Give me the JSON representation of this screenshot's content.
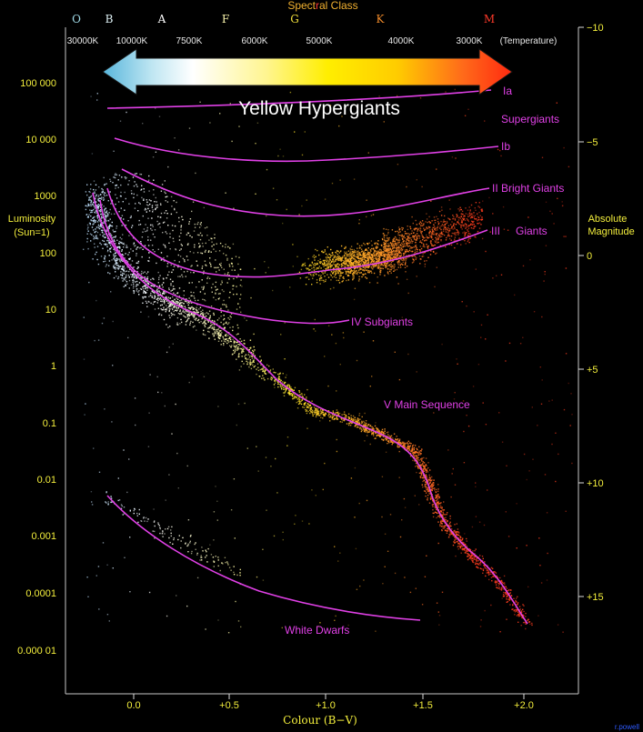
{
  "title_parts": [
    {
      "text": "Spect",
      "color": "#f0b030"
    },
    {
      "text": "r",
      "color": "#ff3a3a"
    },
    {
      "text": "al Class",
      "color": "#f0b030"
    }
  ],
  "spectral_classes": [
    {
      "letter": "O",
      "color": "#9fd9e6"
    },
    {
      "letter": "B",
      "color": "#dff2f6"
    },
    {
      "letter": "A",
      "color": "#ffffff"
    },
    {
      "letter": "F",
      "color": "#fffab0"
    },
    {
      "letter": "G",
      "color": "#f3e13c"
    },
    {
      "letter": "K",
      "color": "#f08a2a"
    },
    {
      "letter": "M",
      "color": "#ff3a2a"
    }
  ],
  "temperatures": [
    "30000K",
    "10000K",
    "7500K",
    "6000K",
    "5000K",
    "4000K",
    "3000K"
  ],
  "temperature_label": "(Temperature)",
  "banner_text": "Yellow Hypergiants",
  "left_axis": {
    "label_line1": "Luminosity",
    "label_line2": "(Sun=1)",
    "ticks": [
      "100 000",
      "10 000",
      "1000",
      "100",
      "10",
      "1",
      "0.1",
      "0.01",
      "0.001",
      "0.0001",
      "0.000 01"
    ]
  },
  "right_axis": {
    "label_line1": "Absolute",
    "label_line2": "Magnitude",
    "ticks": [
      "−10",
      "−5",
      "0",
      "+5",
      "+10",
      "+15"
    ]
  },
  "bottom_axis": {
    "label": "Colour (B−V)",
    "ticks": [
      "0.0",
      "+0.5",
      "+1.0",
      "+1.5",
      "+2.0"
    ]
  },
  "class_labels": [
    {
      "text": "Ia",
      "key": "ia"
    },
    {
      "text": "Supergiants",
      "key": "supergiants"
    },
    {
      "text": "Ib",
      "key": "ib"
    },
    {
      "text": "II Bright Giants",
      "key": "ii"
    },
    {
      "text": "III",
      "key": "iii"
    },
    {
      "text": "Giants",
      "key": "giants"
    },
    {
      "text": "IV  Subgiants",
      "key": "iv"
    },
    {
      "text": "V  Main Sequence",
      "key": "v"
    },
    {
      "text": "White Dwarfs",
      "key": "wd"
    }
  ],
  "credit": "r.powell",
  "colors": {
    "axis_label_yellow": "#f3ee3c",
    "curve_magenta": "#e040e6",
    "background": "#000000"
  }
}
